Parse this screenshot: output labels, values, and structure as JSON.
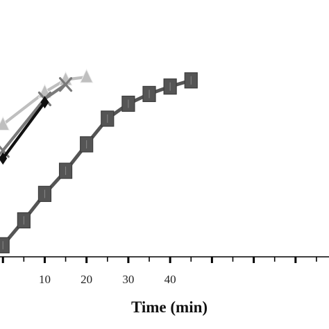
{
  "chart_data": {
    "type": "line",
    "xlabel": "Time (min)",
    "xticks": [
      10,
      20,
      30,
      40
    ],
    "xlim": [
      -0.7,
      78
    ],
    "ylim": [
      0,
      1.0
    ],
    "grid": false,
    "series": [
      {
        "marker": "square",
        "color": "#555555",
        "x": [
          0,
          5,
          10,
          15,
          20,
          25,
          30,
          35,
          40,
          45
        ],
        "y": [
          0.045,
          0.142,
          0.245,
          0.335,
          0.438,
          0.538,
          0.596,
          0.634,
          0.663,
          0.687
        ]
      },
      {
        "marker": "triangle",
        "color": "#bfbfbf",
        "x": [
          0,
          10,
          15,
          20
        ],
        "y": [
          0.515,
          0.641,
          0.69,
          0.7
        ]
      },
      {
        "marker": "cross",
        "color": "#7a7a7a",
        "x": [
          0,
          10,
          15
        ],
        "y": [
          0.414,
          0.615,
          0.671
        ]
      },
      {
        "marker": "diamond",
        "color": "#111111",
        "x": [
          0,
          10
        ],
        "y": [
          0.383,
          0.602
        ]
      }
    ]
  }
}
